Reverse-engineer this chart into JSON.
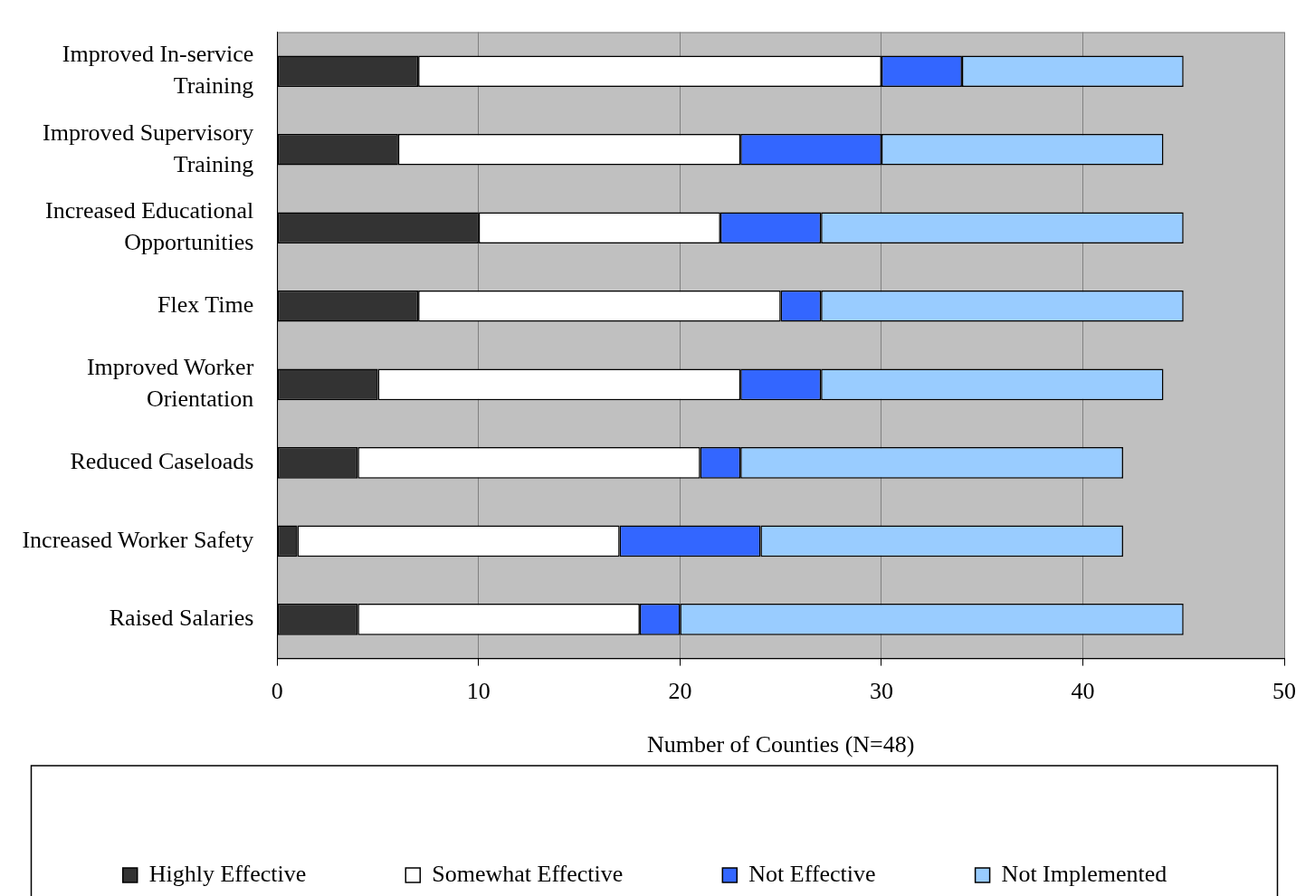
{
  "chart_data": {
    "type": "bar",
    "orientation": "horizontal",
    "stacked": true,
    "xlabel": "Number of Counties (N=48)",
    "categories": [
      "Improved In-service Training",
      "Improved Supervisory Training",
      "Increased Educational Opportunities",
      "Flex Time",
      "Improved Worker Orientation",
      "Reduced Caseloads",
      "Increased Worker Safety",
      "Raised Salaries"
    ],
    "series": [
      {
        "name": "Highly Effective",
        "color": "#333333",
        "values": [
          7,
          6,
          10,
          7,
          5,
          4,
          1,
          4
        ]
      },
      {
        "name": "Somewhat Effective",
        "color": "#ffffff",
        "values": [
          23,
          17,
          12,
          18,
          18,
          17,
          16,
          14
        ]
      },
      {
        "name": "Not Effective",
        "color": "#3366ff",
        "values": [
          4,
          7,
          5,
          2,
          4,
          2,
          7,
          2
        ]
      },
      {
        "name": "Not Implemented",
        "color": "#99ccff",
        "values": [
          11,
          14,
          18,
          18,
          17,
          19,
          18,
          25
        ]
      }
    ],
    "xlim": [
      0,
      50
    ],
    "xticks": [
      0,
      10,
      20,
      30,
      40,
      50
    ],
    "grid": "x",
    "legend": "bottom"
  }
}
